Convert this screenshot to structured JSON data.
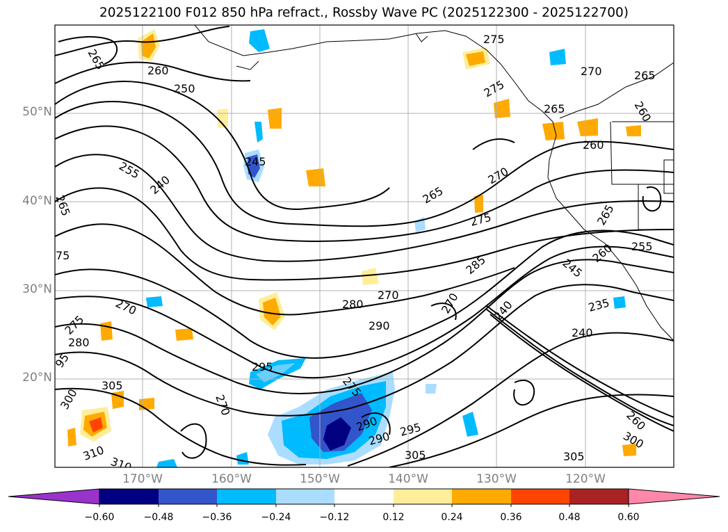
{
  "title": "2025122100 F012 850 hPa refract., Rossby Wave PC (2025122300 - 2025122700)",
  "latitude_labels": [
    "50°N",
    "40°N",
    "30°N",
    "20°N"
  ],
  "longitude_labels": [
    "170°W",
    "160°W",
    "150°W",
    "140°W",
    "130°W",
    "120°W"
  ],
  "contour_labels": [
    "265",
    "260",
    "250",
    "255",
    "240",
    "265",
    "75",
    "270",
    "275",
    "280",
    "95",
    "305",
    "300",
    "310",
    "310",
    "295",
    "270",
    "280",
    "270",
    "290",
    "275",
    "290",
    "295",
    "305",
    "290",
    "245",
    "275",
    "265",
    "270",
    "275",
    "285",
    "270",
    "240",
    "235",
    "240",
    "260",
    "245",
    "255",
    "265",
    "260",
    "265",
    "270",
    "275",
    "265",
    "260",
    "305",
    "300",
    "260"
  ],
  "colorbar": {
    "tick_labels": [
      "−0.60",
      "−0.48",
      "−0.36",
      "−0.24",
      "−0.12",
      "0.12",
      "0.24",
      "0.36",
      "0.48",
      "0.60"
    ],
    "colors": [
      "#9933cc",
      "#000080",
      "#3355cc",
      "#00bbff",
      "#aaddff",
      "#ffffff",
      "#ffee99",
      "#ffaa00",
      "#ff4400",
      "#aa2222",
      "#ff88aa"
    ]
  },
  "colors": {
    "negative_light": "#aaddff",
    "negative_mid": "#00bbff",
    "negative_strong": "#3355cc",
    "negative_dark": "#000080",
    "positive_light": "#ffee99",
    "positive_mid": "#ffaa00",
    "positive_strong": "#ff4400",
    "contour": "#000000",
    "coastline": "#000000",
    "gridline": "#b0b0b0"
  }
}
